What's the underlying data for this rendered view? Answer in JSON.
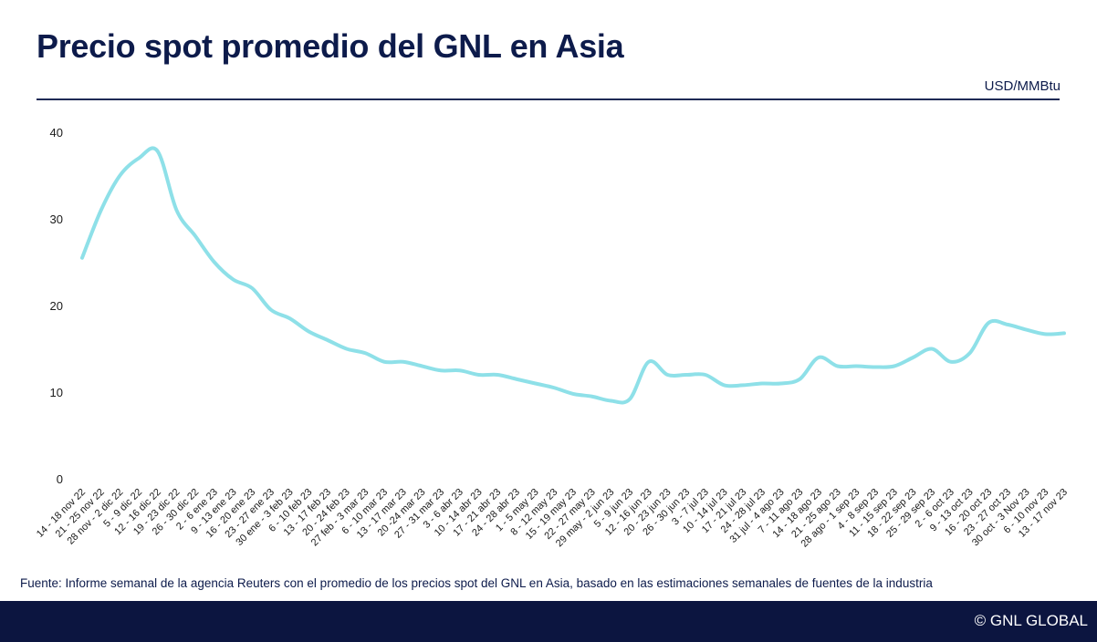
{
  "header": {
    "title": "Precio spot promedio del GNL en Asia",
    "unit": "USD/MMBtu"
  },
  "footer": {
    "source": "Fuente: Informe semanal de la agencia Reuters con el promedio de los precios spot del GNL en Asia, basado en las estimaciones semanales de fuentes de la industria",
    "copyright": "© GNL GLOBAL"
  },
  "colors": {
    "line": "#8ee0e8",
    "title": "#0d1b4b",
    "footer_bg": "#0c1540"
  },
  "chart_data": {
    "type": "line",
    "title": "Precio spot promedio del GNL en Asia",
    "ylabel": "USD/MMBtu",
    "ylim": [
      0,
      40
    ],
    "yticks": [
      0,
      10,
      20,
      30,
      40
    ],
    "grid": false,
    "categories": [
      "14 - 18 nov 22",
      "21 - 25 nov 22",
      "28 nov - 2 dic 22",
      "5 - 9 dic 22",
      "12 - 16 dic 22",
      "19 - 23 dic 22",
      "26 - 30 dic 22",
      "2 - 6 ene 23",
      "9 - 13 ene 23",
      "16 - 20 ene 23",
      "23 - 27 ene 23",
      "30 ene - 3 feb 23",
      "6 - 10 feb 23",
      "13 - 17 feb 23",
      "20 - 24 feb 23",
      "27 feb - 3 mar 23",
      "6 - 10 mar 23",
      "13 - 17 mar 23",
      "20 -24 mar 23",
      "27 - 31 mar 23",
      "3 - 6 abr 23",
      "10 - 14 abr 23",
      "17 - 21 abr 23",
      "24 - 28 abr 23",
      "1 - 5 may 23",
      "8 - 12 may 23",
      "15 - 19 may 23",
      "22 - 27 may 23",
      "29 may - 2 jun 23",
      "5 - 9 jun 23",
      "12 - 16 jun 23",
      "20 - 23 jun 23",
      "26 - 30 jun 23",
      "3 - 7 jul 23",
      "10 - 14 jul 23",
      "17 - 21 jul 23",
      "24 - 28 jul 23",
      "31 jul - 4 ago 23",
      "7 - 11 ago 23",
      "14 - 18 ago 23",
      "21 - 25 ago 23",
      "28 ago - 1 sep 23",
      "4 - 8 sep 23",
      "11 - 15 sep 23",
      "18 - 22 sep 23",
      "25 - 29 sep 23",
      "2 - 6 oct 23",
      "9 - 13 oct 23",
      "16 - 20 oct 23",
      "23 - 27 oct 23",
      "30 oct - 3 Nov 23",
      "6 - 10 nov 23",
      "13 - 17 nov 23"
    ],
    "values": [
      25.5,
      31.0,
      35.0,
      37.0,
      37.8,
      31.0,
      28.0,
      25.0,
      23.0,
      22.0,
      19.5,
      18.5,
      17.0,
      16.0,
      15.0,
      14.5,
      13.5,
      13.5,
      13.0,
      12.5,
      12.5,
      12.0,
      12.0,
      11.5,
      11.0,
      10.5,
      9.8,
      9.5,
      9.0,
      9.2,
      13.5,
      12.0,
      12.0,
      12.0,
      10.8,
      10.8,
      11.0,
      11.0,
      11.5,
      14.0,
      13.0,
      13.0,
      12.9,
      13.0,
      14.0,
      15.0,
      13.5,
      14.5,
      18.0,
      17.8,
      17.2,
      16.7,
      16.8
    ]
  }
}
